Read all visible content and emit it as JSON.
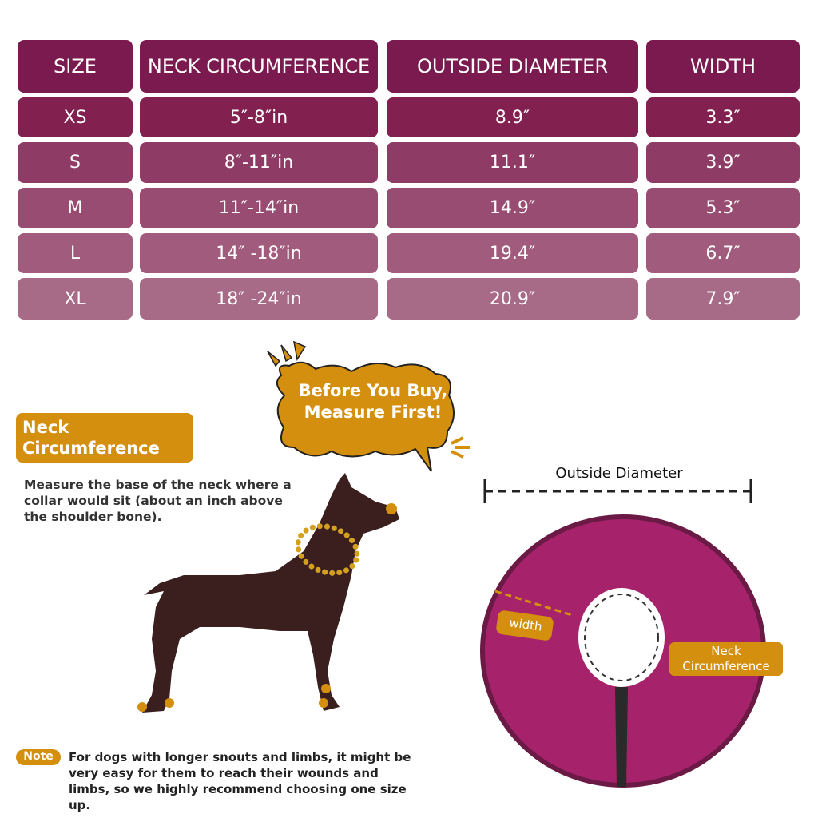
{
  "table": {
    "header": [
      "SIZE",
      "NECK CIRCUMFERENCE",
      "OUTSIDE DIAMETER",
      "WIDTH"
    ],
    "rows": [
      [
        "XS",
        "5″-8″in",
        "8.9″",
        "3.3″"
      ],
      [
        "S",
        "8″-11″in",
        "11.1″",
        "3.9″"
      ],
      [
        "M",
        "11″-14″in",
        "14.9″",
        "5.3″"
      ],
      [
        "L",
        "14″ -18″in",
        "19.4″",
        "6.7″"
      ],
      [
        "XL",
        "18″ -24″in",
        "20.9″",
        "7.9″"
      ]
    ]
  },
  "bubble": {
    "text": "Before You Buy, Measure First!"
  },
  "neck_section": {
    "title": "Neck Circumference",
    "text": "Measure the base of the neck where a collar would sit (about an inch above the shoulder bone)."
  },
  "diagram": {
    "outside_diameter": "Outside Diameter",
    "width": "width",
    "neck": "Neck Circumference"
  },
  "note": {
    "label": "Note",
    "text": "For dogs with longer snouts and limbs, it might be very easy for them to reach their wounds and limbs, so we highly recommend choosing one size up."
  }
}
